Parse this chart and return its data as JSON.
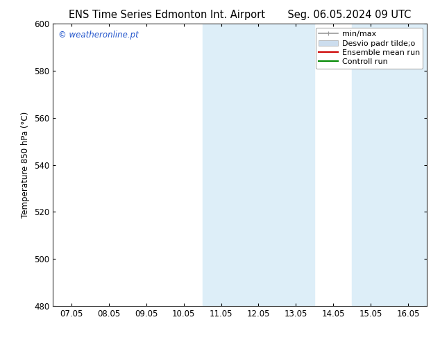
{
  "title_left": "ENS Time Series Edmonton Int. Airport",
  "title_right": "Seg. 06.05.2024 09 UTC",
  "ylabel": "Temperature 850 hPa (°C)",
  "ylim": [
    480,
    600
  ],
  "yticks": [
    480,
    500,
    520,
    540,
    560,
    580,
    600
  ],
  "xticks": [
    "07.05",
    "08.05",
    "09.05",
    "10.05",
    "11.05",
    "12.05",
    "13.05",
    "14.05",
    "15.05",
    "16.05"
  ],
  "shaded_bands": [
    [
      "11.05",
      "13.05"
    ],
    [
      "15.05",
      "16.05"
    ]
  ],
  "shaded_color": "#ddeef8",
  "watermark_text": "© weatheronline.pt",
  "watermark_color": "#2255cc",
  "legend_entries": [
    {
      "label": "min/max",
      "type": "line",
      "color": "#999999",
      "lw": 1.2
    },
    {
      "label": "Desvio padr tilde;o",
      "type": "band",
      "color": "#ccddee"
    },
    {
      "label": "Ensemble mean run",
      "type": "line",
      "color": "#cc0000",
      "lw": 1.5
    },
    {
      "label": "Controll run",
      "type": "line",
      "color": "#008800",
      "lw": 1.5
    }
  ],
  "bg_color": "#ffffff",
  "plot_bg_color": "#ffffff",
  "font_size": 8.5,
  "title_fontsize": 10.5
}
